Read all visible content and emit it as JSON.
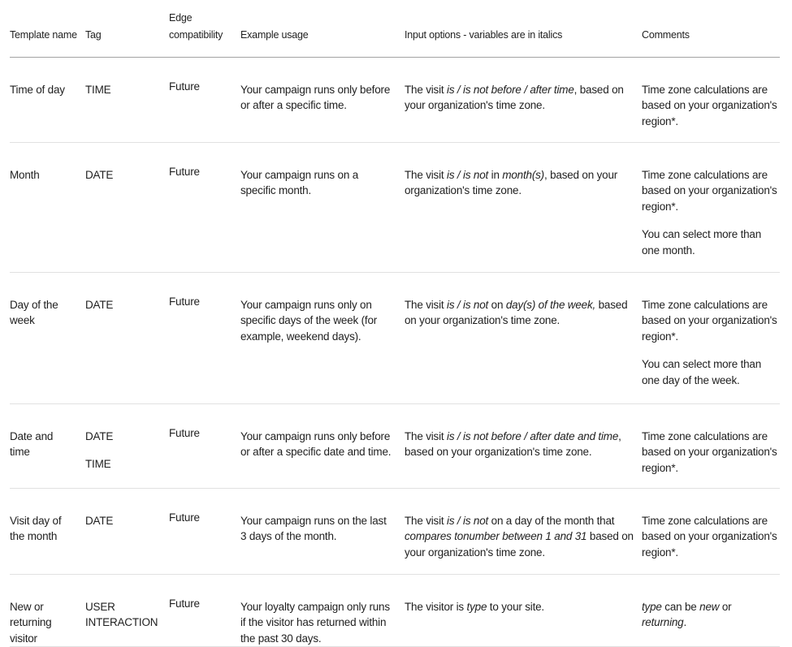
{
  "colors": {
    "text": "#1f1f1f",
    "header_border": "#a3a3a3",
    "row_border": "#e1e1e1",
    "background": "#ffffff"
  },
  "table": {
    "column_keys": [
      "template_name",
      "tag",
      "edge_compatibility",
      "example_usage",
      "input_options",
      "comments"
    ],
    "columns": [
      {
        "key": "template_name",
        "label": "Template name"
      },
      {
        "key": "tag",
        "label": "Tag"
      },
      {
        "key": "edge_compatibility",
        "label": "Edge compatibility"
      },
      {
        "key": "example_usage",
        "label": "Example usage"
      },
      {
        "key": "input_options",
        "label": "Input options - variables are in italics"
      },
      {
        "key": "comments",
        "label": "Comments"
      }
    ],
    "rows": [
      {
        "template_name": [
          [
            "Time of day"
          ]
        ],
        "tag": [
          [
            "TIME"
          ]
        ],
        "edge_compatibility": [
          [
            "Future"
          ]
        ],
        "example_usage": [
          [
            "Your campaign runs only before or after a specific time."
          ]
        ],
        "input_options": [
          [
            "The visit ",
            {
              "em": "is / is not before / after time"
            },
            ", based on your organization's time zone."
          ]
        ],
        "comments": [
          [
            "Time zone calculations are based on your organization's region*."
          ]
        ]
      },
      {
        "template_name": [
          [
            "Month"
          ]
        ],
        "tag": [
          [
            "DATE"
          ]
        ],
        "edge_compatibility": [
          [
            "Future"
          ]
        ],
        "example_usage": [
          [
            "Your campaign runs on a specific month."
          ]
        ],
        "input_options": [
          [
            "The visit ",
            {
              "em": "is / is not"
            },
            " in ",
            {
              "em": "month(s)"
            },
            ", based on your organization's time zone."
          ]
        ],
        "comments": [
          [
            "Time zone calculations are based on your organization's region*."
          ],
          [
            "You can select more than one month."
          ]
        ]
      },
      {
        "template_name": [
          [
            "Day of the week"
          ]
        ],
        "tag": [
          [
            "DATE"
          ]
        ],
        "edge_compatibility": [
          [
            "Future"
          ]
        ],
        "example_usage": [
          [
            "Your campaign runs only on specific days of the week (for example, weekend days)."
          ]
        ],
        "input_options": [
          [
            "The visit ",
            {
              "em": "is / is not"
            },
            " on ",
            {
              "em": "day(s) of the week,"
            },
            " based on your organization's time zone."
          ]
        ],
        "comments": [
          [
            "Time zone calculations are based on your organization's region*."
          ],
          [
            "You can select more than one day of the week."
          ]
        ]
      },
      {
        "template_name": [
          [
            "Date and time"
          ]
        ],
        "tag": [
          [
            "DATE"
          ],
          [
            "TIME"
          ]
        ],
        "edge_compatibility": [
          [
            "Future"
          ]
        ],
        "example_usage": [
          [
            "Your campaign runs only before or after a specific date and time."
          ]
        ],
        "input_options": [
          [
            "The visit ",
            {
              "em": "is / is not before / after date and time"
            },
            ", based on your organization's time zone."
          ]
        ],
        "comments": [
          [
            "Time zone calculations are based on your organization's region*."
          ]
        ]
      },
      {
        "template_name": [
          [
            "Visit day of the month"
          ]
        ],
        "tag": [
          [
            "DATE"
          ]
        ],
        "edge_compatibility": [
          [
            "Future"
          ]
        ],
        "example_usage": [
          [
            "Your campaign runs on the last 3 days of the month."
          ]
        ],
        "input_options": [
          [
            "The visit ",
            {
              "em": "is / is not"
            },
            " on a day of the month that ",
            {
              "em": "compares tonumber between 1 and 31"
            },
            " based on your organization's time zone."
          ]
        ],
        "comments": [
          [
            "Time zone calculations are based on your organization's region*."
          ]
        ]
      },
      {
        "template_name": [
          [
            "New or returning visitor"
          ]
        ],
        "tag": [
          [
            "USER INTERACTION"
          ]
        ],
        "edge_compatibility": [
          [
            "Future"
          ]
        ],
        "example_usage": [
          [
            "Your loyalty campaign only runs if the visitor has returned within the past 30 days."
          ]
        ],
        "input_options": [
          [
            "The visitor is ",
            {
              "em": "type"
            },
            " to your site."
          ]
        ],
        "comments": [
          [
            {
              "em": "type"
            },
            " can be ",
            {
              "em": "new"
            },
            " or ",
            {
              "em": "returning"
            },
            "."
          ]
        ]
      }
    ]
  }
}
